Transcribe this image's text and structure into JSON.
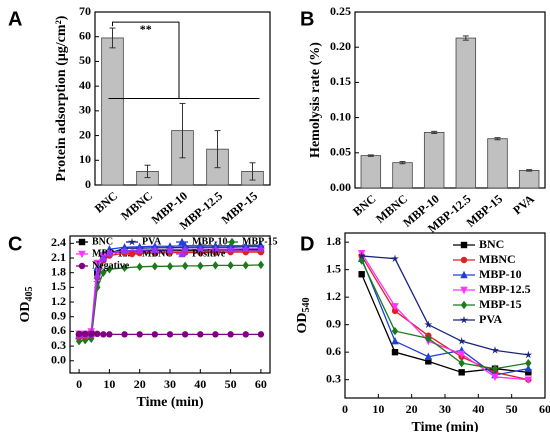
{
  "chart_data": [
    {
      "type": "bar",
      "panel": "A",
      "ylabel": "Protein adsorption (μg/cm²)",
      "annotation": "**",
      "categories": [
        "BNC",
        "MBNC",
        "MBP-10",
        "MBP-12.5",
        "MBP-15"
      ],
      "values": [
        59.5,
        5.5,
        22,
        14.5,
        5.5
      ],
      "errors": [
        4,
        2.5,
        11,
        7.5,
        3.5
      ],
      "color": "#c0c0c0",
      "ylim": [
        0,
        70
      ],
      "yticks": [
        0,
        10,
        20,
        30,
        40,
        50,
        60,
        70
      ]
    },
    {
      "type": "bar",
      "panel": "B",
      "ylabel": "Hemolysis rate (%)",
      "categories": [
        "BNC",
        "MBNC",
        "MBP-10",
        "MBP-12.5",
        "MBP-15",
        "PVA"
      ],
      "values": [
        0.046,
        0.036,
        0.079,
        0.213,
        0.07,
        0.025
      ],
      "errors": [
        0.001,
        0.0015,
        0.0015,
        0.003,
        0.0015,
        0.001
      ],
      "color": "#c0c0c0",
      "ylim": [
        0,
        0.25
      ],
      "yticks": [
        {
          "value": 0,
          "label": "0.00"
        },
        0.05,
        {
          "value": 0.1,
          "label": "0.10"
        },
        0.15,
        {
          "value": 0.2,
          "label": "0.20"
        },
        0.25
      ]
    },
    {
      "type": "line",
      "panel": "C",
      "xlabel": "Time (min)",
      "ylabel": "OD",
      "ylabel_sub": "405",
      "legend": "top",
      "x": [
        0,
        2,
        4,
        6,
        8,
        10,
        15,
        20,
        25,
        30,
        35,
        40,
        45,
        50,
        55,
        60
      ],
      "series": [
        {
          "name": "BNC",
          "color": "#000000",
          "marker": "square",
          "values": [
            0.5,
            0.52,
            0.55,
            1.8,
            2.1,
            2.2,
            2.25,
            2.25,
            2.25,
            2.26,
            2.26,
            2.26,
            2.27,
            2.27,
            2.27,
            2.27
          ]
        },
        {
          "name": "PVA",
          "color": "#1a237e",
          "marker": "star",
          "values": [
            0.52,
            0.53,
            0.55,
            1.6,
            2.05,
            2.2,
            2.3,
            2.3,
            2.31,
            2.31,
            2.32,
            2.32,
            2.32,
            2.32,
            2.33,
            2.33
          ]
        },
        {
          "name": "MBP-10",
          "color": "#1f3fd6",
          "marker": "triangle",
          "values": [
            0.5,
            0.52,
            0.56,
            1.9,
            2.2,
            2.28,
            2.32,
            2.33,
            2.34,
            2.34,
            2.35,
            2.35,
            2.35,
            2.35,
            2.35,
            2.36
          ]
        },
        {
          "name": "MBP-15",
          "color": "#1b7a1b",
          "marker": "diamond",
          "values": [
            0.4,
            0.42,
            0.45,
            1.5,
            1.8,
            1.87,
            1.9,
            1.92,
            1.93,
            1.93,
            1.94,
            1.94,
            1.95,
            1.95,
            1.95,
            1.96
          ]
        },
        {
          "name": "MBP-12.5",
          "color": "#ff33ff",
          "marker": "triangle-down",
          "values": [
            0.55,
            0.55,
            0.6,
            2.0,
            2.15,
            2.2,
            2.22,
            2.22,
            2.23,
            2.23,
            2.23,
            2.23,
            2.24,
            2.24,
            2.24,
            2.24
          ]
        },
        {
          "name": "MBNC",
          "color": "#e02020",
          "marker": "circle",
          "values": [
            0.48,
            0.5,
            0.52,
            1.7,
            2.05,
            2.15,
            2.2,
            2.2,
            2.2,
            2.21,
            2.21,
            2.21,
            2.21,
            2.22,
            2.22,
            2.22
          ]
        },
        {
          "name": "Positive",
          "color": "#9933ff",
          "marker": "triangle",
          "values": [
            0.52,
            0.53,
            0.55,
            1.75,
            2.1,
            2.2,
            2.25,
            2.26,
            2.27,
            2.27,
            2.28,
            2.28,
            2.28,
            2.28,
            2.29,
            2.29
          ]
        },
        {
          "name": "Negative",
          "color": "#800080",
          "marker": "circle",
          "values": [
            0.55,
            0.55,
            0.55,
            0.55,
            0.54,
            0.54,
            0.54,
            0.54,
            0.54,
            0.54,
            0.54,
            0.54,
            0.54,
            0.54,
            0.54,
            0.54
          ]
        }
      ],
      "xlim": [
        -3,
        63
      ],
      "xticks": [
        0,
        10,
        20,
        30,
        40,
        50,
        60
      ],
      "ylim": [
        -0.25,
        2.55
      ],
      "yticks": [
        {
          "value": 0,
          "label": "0.0"
        },
        0.3,
        0.6,
        0.9,
        1.2,
        1.5,
        1.8,
        2.1,
        2.4
      ]
    },
    {
      "type": "line",
      "panel": "D",
      "xlabel": "Time (min)",
      "ylabel": "OD",
      "ylabel_sub": "540",
      "legend": "upper right",
      "x": [
        5,
        15,
        25,
        35,
        45,
        55
      ],
      "series": [
        {
          "name": "BNC",
          "color": "#000000",
          "marker": "square",
          "values": [
            1.45,
            0.6,
            0.5,
            0.38,
            0.42,
            0.38
          ]
        },
        {
          "name": "MBNC",
          "color": "#e02020",
          "marker": "circle",
          "values": [
            1.65,
            1.05,
            0.78,
            0.55,
            0.38,
            0.3
          ]
        },
        {
          "name": "MBP-10",
          "color": "#1f3fd6",
          "marker": "triangle",
          "values": [
            1.62,
            0.72,
            0.55,
            0.62,
            0.35,
            0.42
          ]
        },
        {
          "name": "MBP-12.5",
          "color": "#ff33ff",
          "marker": "triangle-down",
          "values": [
            1.68,
            1.1,
            0.72,
            0.58,
            0.33,
            0.3
          ]
        },
        {
          "name": "MBP-15",
          "color": "#1b7a1b",
          "marker": "diamond",
          "values": [
            1.6,
            0.83,
            0.75,
            0.48,
            0.42,
            0.48
          ]
        },
        {
          "name": "PVA",
          "color": "#1a237e",
          "marker": "star",
          "values": [
            1.65,
            1.62,
            0.9,
            0.72,
            0.62,
            0.57
          ]
        }
      ],
      "xlim": [
        0,
        60
      ],
      "xticks": [
        0,
        10,
        20,
        30,
        40,
        50,
        60
      ],
      "ylim": [
        0.1,
        1.9
      ],
      "yticks": [
        0.3,
        0.6,
        0.9,
        1.2,
        1.5,
        1.8
      ]
    }
  ]
}
